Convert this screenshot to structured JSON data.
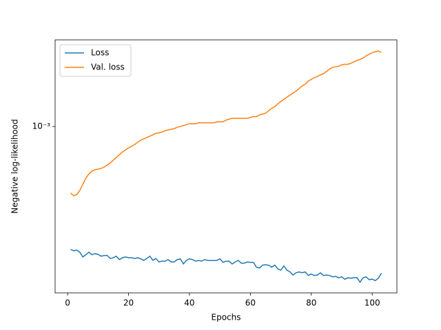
{
  "chart_data": {
    "type": "line",
    "xlabel": "Epochs",
    "ylabel": "Negative log-likelihood",
    "x": [
      1,
      2,
      3,
      4,
      5,
      6,
      7,
      8,
      9,
      10,
      11,
      12,
      13,
      14,
      15,
      16,
      17,
      18,
      19,
      20,
      21,
      22,
      23,
      24,
      25,
      26,
      27,
      28,
      29,
      30,
      31,
      32,
      33,
      34,
      35,
      36,
      37,
      38,
      39,
      40,
      41,
      42,
      43,
      44,
      45,
      46,
      47,
      48,
      49,
      50,
      51,
      52,
      53,
      54,
      55,
      56,
      57,
      58,
      59,
      60,
      61,
      62,
      63,
      64,
      65,
      66,
      67,
      68,
      69,
      70,
      71,
      72,
      73,
      74,
      75,
      76,
      77,
      78,
      79,
      80,
      81,
      82,
      83,
      84,
      85,
      86,
      87,
      88,
      89,
      90,
      91,
      92,
      93,
      94,
      95,
      96,
      97,
      98,
      99,
      100,
      101,
      102,
      103
    ],
    "series": [
      {
        "name": "Loss",
        "color": "#1f77b4",
        "values": [
          0.000276,
          0.000272,
          0.000274,
          0.000268,
          0.000255,
          0.000261,
          0.000268,
          0.000261,
          0.000264,
          0.000262,
          0.000257,
          0.000259,
          0.000259,
          0.000251,
          0.000253,
          0.000257,
          0.000248,
          0.000253,
          0.000255,
          0.000253,
          0.000253,
          0.000251,
          0.000253,
          0.00025,
          0.000246,
          0.000251,
          0.000257,
          0.000246,
          0.000251,
          0.000242,
          0.000244,
          0.000244,
          0.000248,
          0.000242,
          0.000242,
          0.000248,
          0.00025,
          0.000237,
          0.000246,
          0.00025,
          0.000248,
          0.000244,
          0.000246,
          0.000244,
          0.000248,
          0.000246,
          0.000246,
          0.000246,
          0.000246,
          0.00025,
          0.000241,
          0.000244,
          0.000244,
          0.000237,
          0.000242,
          0.000246,
          0.000239,
          0.000239,
          0.000242,
          0.000241,
          0.000241,
          0.000229,
          0.000227,
          0.000234,
          0.000235,
          0.000234,
          0.000229,
          0.000234,
          0.000225,
          0.000222,
          0.000232,
          0.000222,
          0.000218,
          0.000211,
          0.000216,
          0.000218,
          0.000216,
          0.000218,
          0.00021,
          0.000213,
          0.00021,
          0.000211,
          0.000216,
          0.00021,
          0.000211,
          0.00021,
          0.000207,
          0.000208,
          0.000205,
          0.000207,
          0.000202,
          0.000205,
          0.000204,
          0.000205,
          0.000205,
          0.000196,
          0.000205,
          0.000207,
          0.000201,
          0.000202,
          0.000199,
          0.000204,
          0.000215
        ]
      },
      {
        "name": "Val. loss",
        "color": "#ff7f0e",
        "values": [
          0.000498,
          0.000484,
          0.00049,
          0.000512,
          0.000546,
          0.000583,
          0.000609,
          0.000627,
          0.000636,
          0.00064,
          0.000645,
          0.000654,
          0.000668,
          0.000683,
          0.000703,
          0.000723,
          0.000745,
          0.000766,
          0.000783,
          0.0008,
          0.000812,
          0.000829,
          0.000848,
          0.000866,
          0.000879,
          0.000891,
          0.000904,
          0.000917,
          0.000931,
          0.000937,
          0.000944,
          0.000958,
          0.000965,
          0.000972,
          0.000979,
          0.000993,
          0.001,
          0.00101,
          0.00102,
          0.00103,
          0.00103,
          0.00103,
          0.00104,
          0.00104,
          0.00104,
          0.00104,
          0.00104,
          0.00104,
          0.00105,
          0.00105,
          0.00105,
          0.00107,
          0.00108,
          0.00109,
          0.00109,
          0.00109,
          0.00109,
          0.00109,
          0.00109,
          0.0011,
          0.00111,
          0.00111,
          0.00113,
          0.00114,
          0.00115,
          0.00118,
          0.00121,
          0.00123,
          0.00127,
          0.0013,
          0.00133,
          0.00136,
          0.00139,
          0.00142,
          0.00145,
          0.00149,
          0.00153,
          0.00156,
          0.00161,
          0.00164,
          0.00167,
          0.00169,
          0.00172,
          0.00174,
          0.00178,
          0.00183,
          0.00186,
          0.00187,
          0.00188,
          0.00191,
          0.00192,
          0.00192,
          0.00194,
          0.00197,
          0.002,
          0.00202,
          0.00205,
          0.0021,
          0.00213,
          0.00217,
          0.00219,
          0.00221,
          0.00217
        ]
      }
    ],
    "xlim": [
      -4.1,
      108.1
    ],
    "xticks": [
      0,
      20,
      40,
      60,
      80,
      100
    ],
    "ylim": [
      0.000175,
      0.00248
    ],
    "yscale": "log",
    "yticks": [
      {
        "value": 0.001,
        "label": "10⁻³"
      }
    ],
    "legend": "upper left",
    "grid": false
  }
}
